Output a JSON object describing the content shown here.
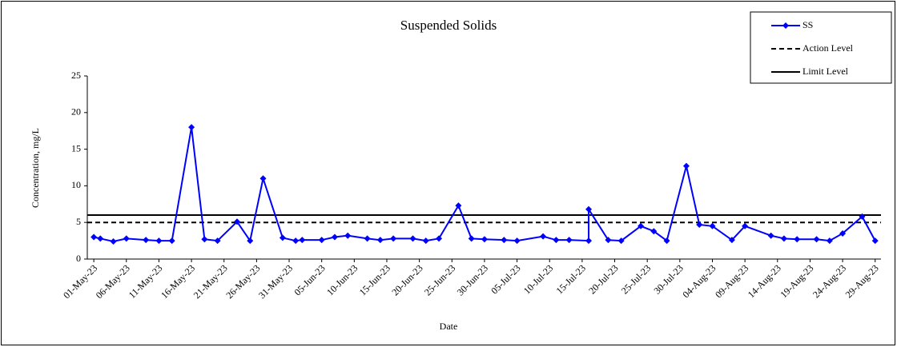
{
  "chart_data": {
    "type": "line",
    "title": "Suspended Solids",
    "x_label": "Date",
    "y_label": "Concentration, mg/L",
    "x": [
      "2023-05-01",
      "2023-05-02",
      "2023-05-04",
      "2023-05-06",
      "2023-05-09",
      "2023-05-11",
      "2023-05-13",
      "2023-05-16",
      "2023-05-18",
      "2023-05-20",
      "2023-05-23",
      "2023-05-25",
      "2023-05-27",
      "2023-05-30",
      "2023-06-01",
      "2023-06-02",
      "2023-06-05",
      "2023-06-07",
      "2023-06-09",
      "2023-06-12",
      "2023-06-14",
      "2023-06-16",
      "2023-06-19",
      "2023-06-21",
      "2023-06-23",
      "2023-06-26",
      "2023-06-28",
      "2023-06-30",
      "2023-07-03",
      "2023-07-05",
      "2023-07-09",
      "2023-07-11",
      "2023-07-13",
      "2023-07-16",
      "2023-07-16",
      "2023-07-19",
      "2023-07-21",
      "2023-07-24",
      "2023-07-26",
      "2023-07-28",
      "2023-07-31",
      "2023-08-02",
      "2023-08-04",
      "2023-08-07",
      "2023-08-09",
      "2023-08-13",
      "2023-08-15",
      "2023-08-17",
      "2023-08-20",
      "2023-08-22",
      "2023-08-24",
      "2023-08-27",
      "2023-08-29"
    ],
    "series": [
      {
        "name": "SS",
        "color": "#0000ff",
        "values": [
          3.0,
          2.8,
          2.4,
          2.8,
          2.6,
          2.5,
          2.5,
          18,
          2.7,
          2.5,
          5.1,
          2.5,
          11,
          2.9,
          2.5,
          2.6,
          2.6,
          3.0,
          3.2,
          2.8,
          2.6,
          2.8,
          2.8,
          2.5,
          2.8,
          7.3,
          2.8,
          2.7,
          2.6,
          2.5,
          3.1,
          2.6,
          2.6,
          2.5,
          6.8,
          2.6,
          2.5,
          4.5,
          3.8,
          2.5,
          12.7,
          4.7,
          4.5,
          2.6,
          4.5,
          3.2,
          2.8,
          2.7,
          2.7,
          2.5,
          3.5,
          5.8,
          2.5
        ]
      }
    ],
    "reference_lines": [
      {
        "name": "Action Level",
        "value": 5,
        "color": "#000000",
        "style": "dashed"
      },
      {
        "name": "Limit Level",
        "value": 6,
        "color": "#000000",
        "style": "solid"
      }
    ],
    "xlim": [
      "2023-04-30",
      "2023-08-31"
    ],
    "xticks": [
      {
        "value": "2023-05-01",
        "label": "01-May-23"
      },
      {
        "value": "2023-05-06",
        "label": "06-May-23"
      },
      {
        "value": "2023-05-11",
        "label": "11-May-23"
      },
      {
        "value": "2023-05-16",
        "label": "16-May-23"
      },
      {
        "value": "2023-05-21",
        "label": "21-May-23"
      },
      {
        "value": "2023-05-26",
        "label": "26-May-23"
      },
      {
        "value": "2023-05-31",
        "label": "31-May-23"
      },
      {
        "value": "2023-06-05",
        "label": "05-Jun-23"
      },
      {
        "value": "2023-06-10",
        "label": "10-Jun-23"
      },
      {
        "value": "2023-06-15",
        "label": "15-Jun-23"
      },
      {
        "value": "2023-06-20",
        "label": "20-Jun-23"
      },
      {
        "value": "2023-06-25",
        "label": "25-Jun-23"
      },
      {
        "value": "2023-06-30",
        "label": "30-Jun-23"
      },
      {
        "value": "2023-07-05",
        "label": "05-Jul-23"
      },
      {
        "value": "2023-07-10",
        "label": "10-Jul-23"
      },
      {
        "value": "2023-07-15",
        "label": "15-Jul-23"
      },
      {
        "value": "2023-07-20",
        "label": "20-Jul-23"
      },
      {
        "value": "2023-07-25",
        "label": "25-Jul-23"
      },
      {
        "value": "2023-07-30",
        "label": "30-Jul-23"
      },
      {
        "value": "2023-08-04",
        "label": "04-Aug-23"
      },
      {
        "value": "2023-08-09",
        "label": "09-Aug-23"
      },
      {
        "value": "2023-08-14",
        "label": "14-Aug-23"
      },
      {
        "value": "2023-08-19",
        "label": "19-Aug-23"
      },
      {
        "value": "2023-08-24",
        "label": "24-Aug-23"
      },
      {
        "value": "2023-08-29",
        "label": "29-Aug-23"
      }
    ],
    "ylim": [
      0,
      25
    ],
    "yticks": [
      0,
      5,
      10,
      15,
      20,
      25
    ],
    "grid": false,
    "legend": "upper right"
  }
}
